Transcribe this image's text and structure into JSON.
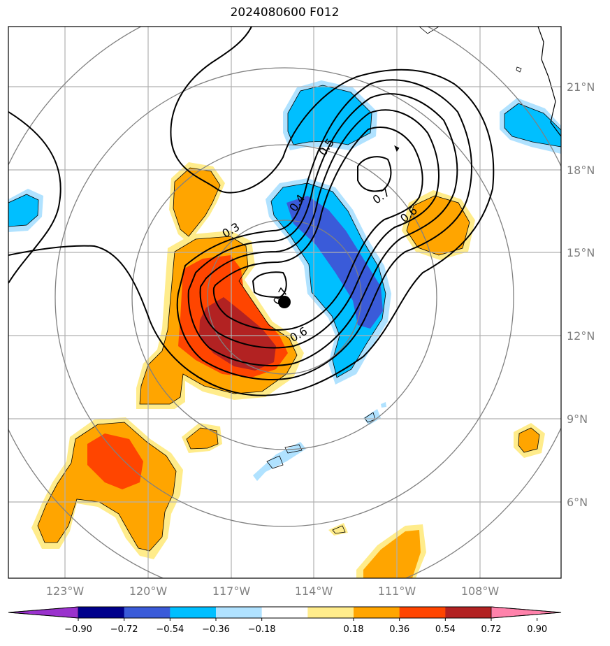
{
  "title": "2024080600 F012",
  "map": {
    "lon_ticks": [
      "123°W",
      "120°W",
      "117°W",
      "114°W",
      "111°W",
      "108°W"
    ],
    "lat_ticks": [
      "21°N",
      "18°N",
      "15°N",
      "12°N",
      "9°N",
      "6°N"
    ],
    "storm_center": {
      "lon": -114.4,
      "lat": 13.2
    },
    "range_rings": "concentric circles around storm center",
    "gridlines": true
  },
  "contour_labels": [
    "0.3",
    "0.4",
    "0.5",
    "0.6",
    "0.7",
    "0.6",
    "0.7"
  ],
  "colorbar": {
    "ticks": [
      "−0.90",
      "−0.72",
      "−0.54",
      "−0.36",
      "−0.18",
      "0.18",
      "0.36",
      "0.54",
      "0.72",
      "0.90"
    ],
    "colors": [
      "#9a32cd",
      "#00008b",
      "#3a5bd9",
      "#00bfff",
      "#b0e2ff",
      "#ffffff",
      "#ffec8b",
      "#ffa500",
      "#ff4500",
      "#b22222",
      "#ff82ab"
    ],
    "extend": "both"
  },
  "fill_colors": {
    "light_yellow": "#ffec8b",
    "orange": "#ffa500",
    "red_orange": "#ff4500",
    "dark_red": "#b22222",
    "light_blue": "#b0e2ff",
    "deep_sky_blue": "#00bfff",
    "royal_blue": "#3a5bd9"
  }
}
